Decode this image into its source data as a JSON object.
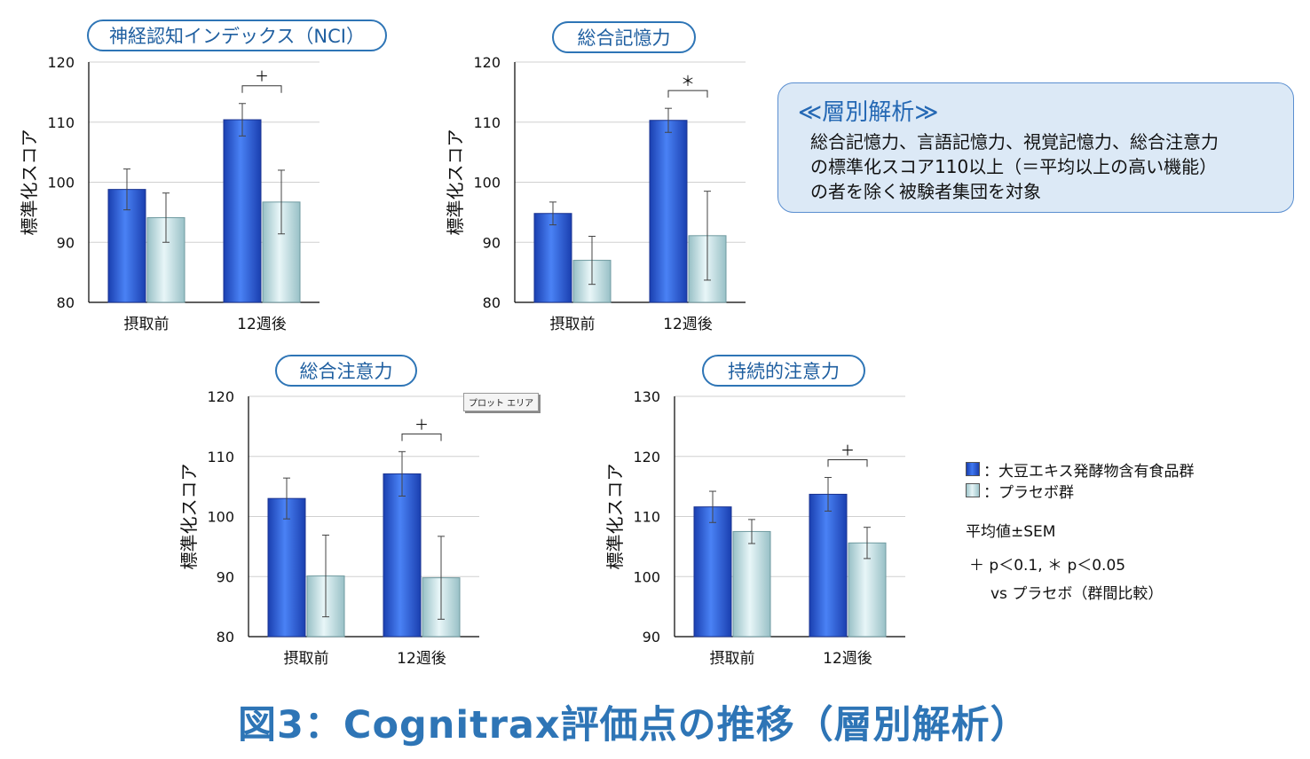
{
  "caption": "図3：Cognitrax評価点の推移（層別解析）",
  "info_box": {
    "title": "≪層別解析≫",
    "lines": [
      "総合記憶力、言語記憶力、視覚記憶力、総合注意力",
      "の標準化スコア110以上（＝平均以上の高い機能）",
      "の者を除く被験者集団を対象"
    ]
  },
  "plot_area_tag": "プロット エリア",
  "legend": {
    "items": [
      {
        "label": "：大豆エキス発酵物含有食品群",
        "color": "#2f5fd8"
      },
      {
        "label": "：プラセボ群",
        "color": "#c8e4e8"
      }
    ],
    "mean_label": "平均値±SEM",
    "significance": "＋ p＜0.1, ＊ p＜0.05",
    "comparison": "vs プラセボ（群間比較）"
  },
  "colors": {
    "test": "#2f5fd8",
    "placebo": "#c8e4e8",
    "accent": "#2e75b6"
  },
  "chart_data": [
    {
      "type": "bar",
      "title": "神経認知インデックス（NCI）",
      "ylabel": "標準化スコア",
      "categories": [
        "摂取前",
        "12週後"
      ],
      "ylim": [
        80,
        120
      ],
      "yticks": [
        80,
        90,
        100,
        110,
        120
      ],
      "series": [
        {
          "values": [
            98.8,
            110.4
          ],
          "errors": [
            3.4,
            2.7
          ]
        },
        {
          "values": [
            94.1,
            96.7
          ],
          "errors": [
            4.1,
            5.3
          ]
        }
      ],
      "annotation": {
        "category_index": 1,
        "symbol": "＋"
      }
    },
    {
      "type": "bar",
      "title": "総合記憶力",
      "ylabel": "標準化スコア",
      "categories": [
        "摂取前",
        "12週後"
      ],
      "ylim": [
        80,
        120
      ],
      "yticks": [
        80,
        90,
        100,
        110,
        120
      ],
      "series": [
        {
          "values": [
            94.8,
            110.3
          ],
          "errors": [
            1.9,
            2.0
          ]
        },
        {
          "values": [
            87.0,
            91.1
          ],
          "errors": [
            4.0,
            7.4
          ]
        }
      ],
      "annotation": {
        "category_index": 1,
        "symbol": "＊"
      }
    },
    {
      "type": "bar",
      "title": "総合注意力",
      "ylabel": "標準化スコア",
      "categories": [
        "摂取前",
        "12週後"
      ],
      "ylim": [
        80,
        120
      ],
      "yticks": [
        80,
        90,
        100,
        110,
        120
      ],
      "series": [
        {
          "values": [
            103.0,
            107.1
          ],
          "errors": [
            3.4,
            3.7
          ]
        },
        {
          "values": [
            90.1,
            89.8
          ],
          "errors": [
            6.8,
            6.9
          ]
        }
      ],
      "annotation": {
        "category_index": 1,
        "symbol": "＋"
      }
    },
    {
      "type": "bar",
      "title": "持続的注意力",
      "ylabel": "標準化スコア",
      "categories": [
        "摂取前",
        "12週後"
      ],
      "ylim": [
        90,
        130
      ],
      "yticks": [
        90,
        100,
        110,
        120,
        130
      ],
      "series": [
        {
          "values": [
            111.6,
            113.7
          ],
          "errors": [
            2.6,
            2.8
          ]
        },
        {
          "values": [
            107.5,
            105.6
          ],
          "errors": [
            2.0,
            2.6
          ]
        }
      ],
      "annotation": {
        "category_index": 1,
        "symbol": "＋"
      }
    }
  ]
}
